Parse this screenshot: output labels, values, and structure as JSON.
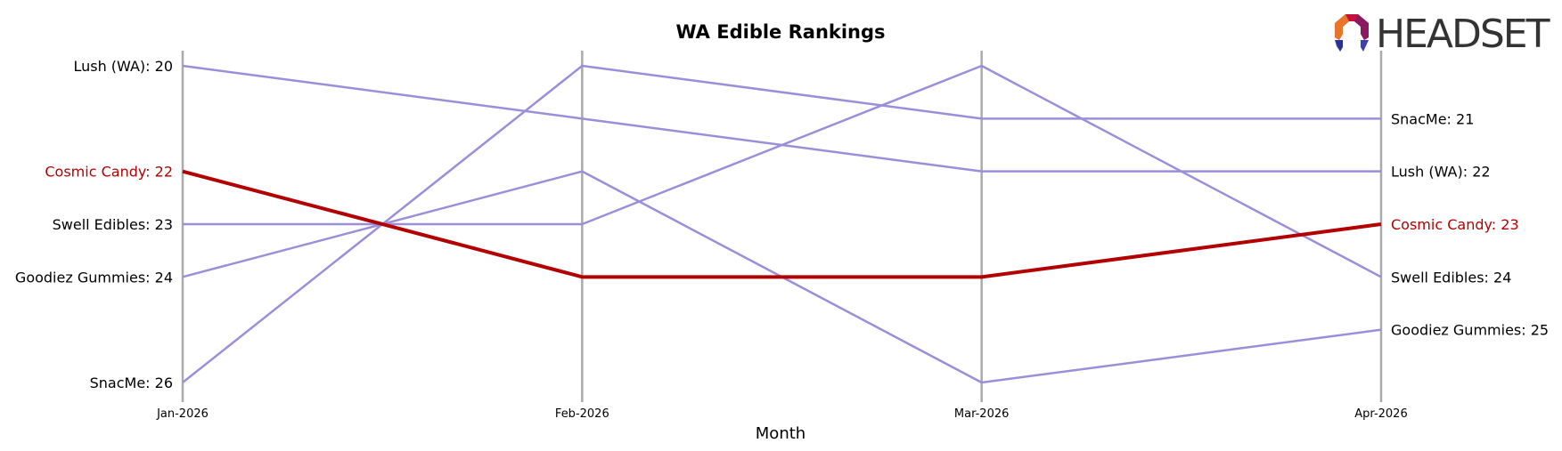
{
  "chart_data": {
    "type": "line",
    "title": "WA Edible Rankings",
    "xlabel": "Month",
    "ylabel": "",
    "categories": [
      "Jan-2026",
      "Feb-2026",
      "Mar-2026",
      "Apr-2026"
    ],
    "ylim": [
      20,
      26
    ],
    "y_inverted": true,
    "highlight_series": "Cosmic Candy",
    "colors": {
      "highlight": "#b30000",
      "default_line": "#9a8fdb",
      "axis_line": "#aaaaaa",
      "label_default": "#000000"
    },
    "series": [
      {
        "name": "Lush (WA)",
        "values": [
          20,
          21,
          22,
          22
        ]
      },
      {
        "name": "Cosmic Candy",
        "values": [
          22,
          24,
          24,
          23
        ]
      },
      {
        "name": "Swell Edibles",
        "values": [
          23,
          23,
          20,
          24
        ]
      },
      {
        "name": "Goodiez Gummies",
        "values": [
          24,
          22,
          26,
          25
        ]
      },
      {
        "name": "SnacMe",
        "values": [
          26,
          20,
          21,
          21
        ]
      }
    ],
    "start_labels": [
      {
        "series": "Lush (WA)",
        "text": "Lush (WA): 20",
        "value": 20
      },
      {
        "series": "Cosmic Candy",
        "text": "Cosmic Candy: 22",
        "value": 22
      },
      {
        "series": "Swell Edibles",
        "text": "Swell Edibles: 23",
        "value": 23
      },
      {
        "series": "Goodiez Gummies",
        "text": "Goodiez Gummies: 24",
        "value": 24
      },
      {
        "series": "SnacMe",
        "text": "SnacMe: 26",
        "value": 26
      }
    ],
    "end_labels": [
      {
        "series": "SnacMe",
        "text": "SnacMe: 21",
        "value": 21
      },
      {
        "series": "Lush (WA)",
        "text": "Lush (WA): 22",
        "value": 22
      },
      {
        "series": "Cosmic Candy",
        "text": "Cosmic Candy: 23",
        "value": 23
      },
      {
        "series": "Swell Edibles",
        "text": "Swell Edibles: 24",
        "value": 24
      },
      {
        "series": "Goodiez Gummies",
        "text": "Goodiez Gummies: 25",
        "value": 25
      }
    ],
    "grid": false,
    "legend": "none"
  },
  "logo": {
    "text": "HEADSET",
    "icon": "headset-logo-icon",
    "colors": [
      "#e8752a",
      "#c4123f",
      "#8b1a5e",
      "#2b2f8f",
      "#3b3fb0"
    ]
  }
}
